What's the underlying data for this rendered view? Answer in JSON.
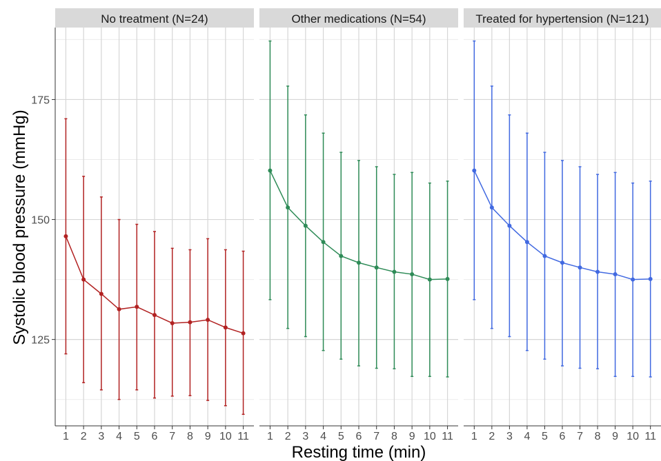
{
  "chart_data": {
    "type": "line",
    "xlabel": "Resting time (min)",
    "ylabel": "Systolic blood pressure (mmHg)",
    "ylim": [
      107,
      190
    ],
    "y_ticks": [
      125,
      150,
      175
    ],
    "x": [
      1,
      2,
      3,
      4,
      5,
      6,
      7,
      8,
      9,
      10,
      11
    ],
    "x_tick_labels": [
      "1",
      "2",
      "3",
      "4",
      "5",
      "6",
      "7",
      "8",
      "9",
      "10",
      "11"
    ],
    "grid": true,
    "error_bars": true,
    "panels": [
      {
        "title": "No treatment (N=24)",
        "color": "#b22222",
        "values": [
          146.5,
          137.5,
          134.5,
          131.3,
          131.8,
          130.1,
          128.4,
          128.6,
          129.1,
          127.5,
          126.3
        ],
        "lower": [
          122.0,
          116.0,
          114.5,
          112.5,
          114.5,
          112.8,
          113.2,
          113.3,
          112.3,
          111.2,
          109.4
        ],
        "upper": [
          171.0,
          159.0,
          154.7,
          150.0,
          149.0,
          147.5,
          144.0,
          143.7,
          146.0,
          143.7,
          143.4
        ]
      },
      {
        "title": "Other medications (N=54)",
        "color": "#2e8b57",
        "values": [
          160.2,
          152.5,
          148.7,
          145.3,
          142.4,
          141.0,
          140.0,
          139.1,
          138.6,
          137.5,
          137.6
        ],
        "lower": [
          133.3,
          127.3,
          125.6,
          122.7,
          120.9,
          119.5,
          119.0,
          118.9,
          117.3,
          117.3,
          117.2
        ],
        "upper": [
          187.2,
          177.8,
          171.8,
          168.0,
          164.0,
          162.3,
          161.0,
          159.4,
          159.8,
          157.6,
          158.0
        ]
      },
      {
        "title": "Treated for hypertension (N=121)",
        "color": "#4169e1",
        "values": [
          160.2,
          152.5,
          148.7,
          145.3,
          142.4,
          141.0,
          140.0,
          139.1,
          138.6,
          137.5,
          137.6
        ],
        "lower": [
          133.3,
          127.3,
          125.6,
          122.7,
          120.9,
          119.5,
          119.0,
          118.9,
          117.3,
          117.3,
          117.2
        ],
        "upper": [
          187.2,
          177.8,
          171.8,
          168.0,
          164.0,
          162.3,
          161.0,
          159.4,
          159.8,
          157.6,
          158.0
        ]
      }
    ]
  }
}
